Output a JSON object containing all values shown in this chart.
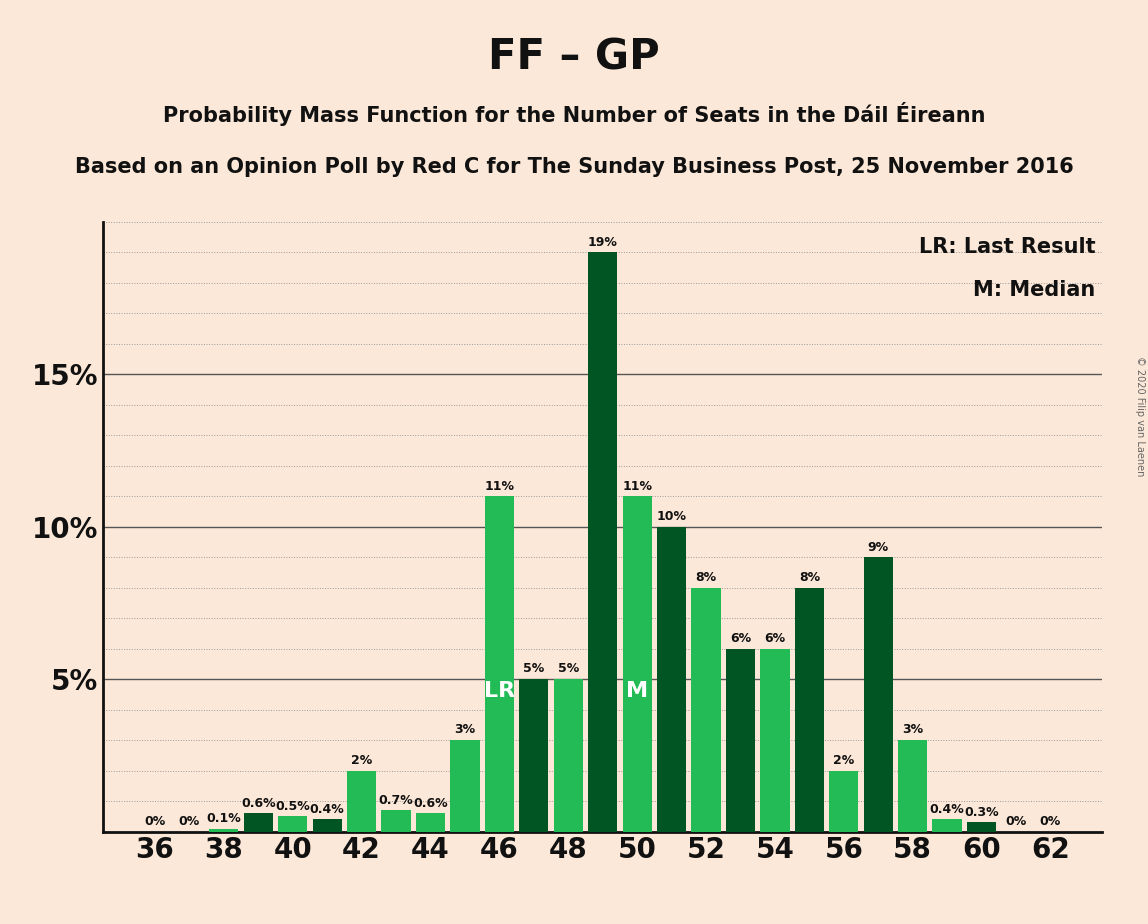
{
  "title": "FF – GP",
  "subtitle1": "Probability Mass Function for the Number of Seats in the Dáil Éireann",
  "subtitle2": "Based on an Opinion Poll by Red C for The Sunday Business Post, 25 November 2016",
  "copyright": "© 2020 Filip van Laenen",
  "legend_lr": "LR: Last Result",
  "legend_m": "M: Median",
  "seats": [
    36,
    37,
    38,
    39,
    40,
    41,
    42,
    43,
    44,
    45,
    46,
    47,
    48,
    49,
    50,
    51,
    52,
    53,
    54,
    55,
    56,
    57,
    58,
    59,
    60,
    61,
    62
  ],
  "values": [
    0.0,
    0.0,
    0.1,
    0.6,
    0.5,
    0.4,
    2.0,
    0.7,
    0.6,
    3.0,
    11.0,
    5.0,
    5.0,
    19.0,
    11.0,
    10.0,
    8.0,
    6.0,
    6.0,
    8.0,
    2.0,
    9.0,
    3.0,
    0.4,
    0.3,
    0.0,
    0.0
  ],
  "bar_colors": [
    "#22bb55",
    "#22bb55",
    "#22bb55",
    "#005522",
    "#22bb55",
    "#005522",
    "#22bb55",
    "#22bb55",
    "#22bb55",
    "#22bb55",
    "#22bb55",
    "#005522",
    "#22bb55",
    "#005522",
    "#22bb55",
    "#005522",
    "#22bb55",
    "#005522",
    "#22bb55",
    "#005522",
    "#22bb55",
    "#005522",
    "#22bb55",
    "#22bb55",
    "#005522",
    "#005522",
    "#005522"
  ],
  "lr_seat": 46,
  "median_seat": 50,
  "background_color": "#fce8d8",
  "ylim_max": 20,
  "bar_width": 0.85,
  "grid_color": "#999999",
  "solid_grid_color": "#555555",
  "axis_color": "#111111",
  "label_color": "#111111",
  "tick_fontsize": 20,
  "bar_label_fontsize": 9,
  "title_fontsize": 30,
  "subtitle_fontsize": 15,
  "legend_fontsize": 15
}
